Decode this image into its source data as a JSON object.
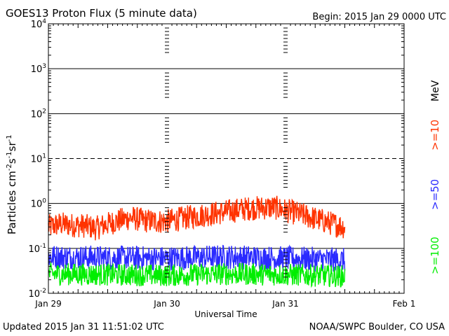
{
  "chart_data": {
    "type": "line",
    "title": "GOES13 Proton Flux (5 minute data)",
    "begin_label": "Begin: 2015 Jan 29 0000 UTC",
    "xlabel": "Universal Time",
    "ylabel_main": "Particles cm",
    "ylabel_exp1": "-2",
    "ylabel_mid1": "s",
    "ylabel_exp2": "-1",
    "ylabel_mid2": "sr",
    "ylabel_exp3": "-1",
    "unit_label": "MeV",
    "y_scale": "log",
    "ylim": [
      0.01,
      10000
    ],
    "y_tick_labels": [
      {
        "base": "10",
        "exp": "4",
        "value": 10000
      },
      {
        "base": "10",
        "exp": "3",
        "value": 1000
      },
      {
        "base": "10",
        "exp": "2",
        "value": 100
      },
      {
        "base": "10",
        "exp": "1",
        "value": 10
      },
      {
        "base": "10",
        "exp": "0",
        "value": 1
      },
      {
        "base": "10",
        "exp": "-1",
        "value": 0.1
      },
      {
        "base": "10",
        "exp": "-2",
        "value": 0.01
      }
    ],
    "xlim_days": [
      0,
      3
    ],
    "x_tick_labels": [
      "Jan 29",
      "Jan 30",
      "Jan 31",
      "Feb 1"
    ],
    "data_end_day": 2.5,
    "threshold_lines": [
      {
        "value": 10,
        "style": "dashed"
      }
    ],
    "series": [
      {
        "name": ">=10",
        "color": "#ff3300",
        "points": [
          [
            0.0,
            0.3
          ],
          [
            0.1,
            0.35
          ],
          [
            0.2,
            0.33
          ],
          [
            0.3,
            0.32
          ],
          [
            0.4,
            0.28
          ],
          [
            0.5,
            0.35
          ],
          [
            0.6,
            0.42
          ],
          [
            0.7,
            0.48
          ],
          [
            0.8,
            0.42
          ],
          [
            0.9,
            0.4
          ],
          [
            1.0,
            0.4
          ],
          [
            1.1,
            0.45
          ],
          [
            1.2,
            0.5
          ],
          [
            1.3,
            0.55
          ],
          [
            1.4,
            0.6
          ],
          [
            1.5,
            0.65
          ],
          [
            1.6,
            0.72
          ],
          [
            1.7,
            0.78
          ],
          [
            1.8,
            0.8
          ],
          [
            1.9,
            0.82
          ],
          [
            2.0,
            0.7
          ],
          [
            2.1,
            0.6
          ],
          [
            2.2,
            0.5
          ],
          [
            2.3,
            0.42
          ],
          [
            2.4,
            0.35
          ],
          [
            2.5,
            0.3
          ]
        ]
      },
      {
        "name": ">=50",
        "color": "#2a2aff",
        "points": [
          [
            0.0,
            0.065
          ],
          [
            0.5,
            0.062
          ],
          [
            1.0,
            0.06
          ],
          [
            1.5,
            0.065
          ],
          [
            2.0,
            0.06
          ],
          [
            2.5,
            0.055
          ]
        ]
      },
      {
        "name": ">=100",
        "color": "#00ee00",
        "points": [
          [
            0.0,
            0.027
          ],
          [
            0.5,
            0.026
          ],
          [
            1.0,
            0.025
          ],
          [
            1.5,
            0.027
          ],
          [
            2.0,
            0.026
          ],
          [
            2.5,
            0.024
          ]
        ]
      }
    ],
    "grid": true
  },
  "footer": {
    "updated": "Updated 2015 Jan 31 11:51:02 UTC",
    "credit": "NOAA/SWPC Boulder, CO USA"
  }
}
